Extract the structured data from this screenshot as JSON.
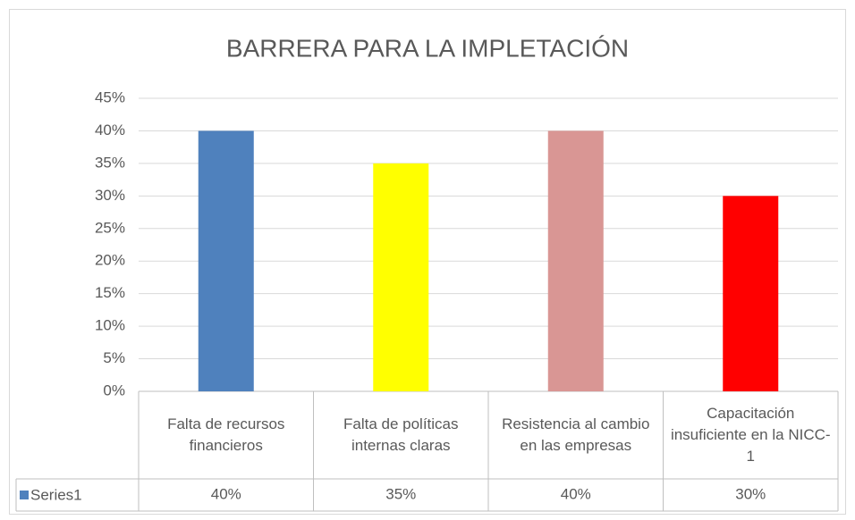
{
  "chart_data": {
    "type": "bar",
    "title": "BARRERA PARA LA IMPLETACIÓN",
    "categories": [
      "Falta de recursos financieros",
      "Falta de políticas internas claras",
      "Resistencia al cambio en las empresas",
      "Capacitación insuficiente en la NICC-1"
    ],
    "series": [
      {
        "name": "Series1",
        "color": "#4f81bd",
        "colors": [
          "#4f81bd",
          "#ffff00",
          "#d99694",
          "#ff0000"
        ],
        "values": [
          40,
          35,
          40,
          30
        ],
        "value_labels": [
          "40%",
          "35%",
          "40%",
          "30%"
        ]
      }
    ],
    "ylim": [
      0,
      45
    ],
    "yticks": [
      {
        "value": 0,
        "label": "0%"
      },
      {
        "value": 5,
        "label": "5%"
      },
      {
        "value": 10,
        "label": "10%"
      },
      {
        "value": 15,
        "label": "15%"
      },
      {
        "value": 20,
        "label": "20%"
      },
      {
        "value": 25,
        "label": "25%"
      },
      {
        "value": 30,
        "label": "30%"
      },
      {
        "value": 35,
        "label": "35%"
      },
      {
        "value": 40,
        "label": "40%"
      },
      {
        "value": 45,
        "label": "45%"
      }
    ],
    "grid": true
  }
}
